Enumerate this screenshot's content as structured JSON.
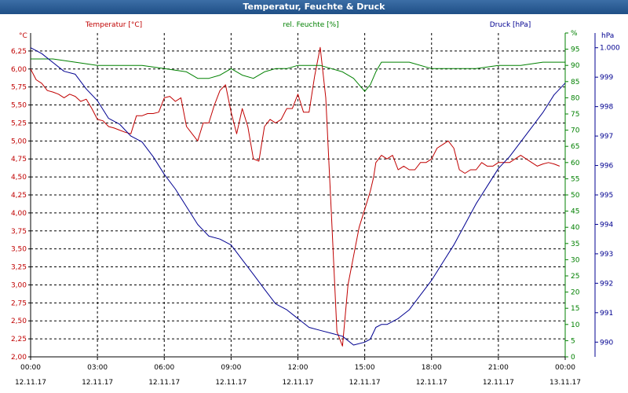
{
  "window": {
    "title": "Temperatur, Feuchte & Druck"
  },
  "chart_data": {
    "type": "line",
    "title": "Temperatur, Feuchte & Druck",
    "legend": {
      "placement": "top",
      "entries": [
        "Temperatur [°C]",
        "rel. Feuchte [%]",
        "Druck [hPa]"
      ]
    },
    "grid": true,
    "x_range": [
      "12.11.17 00:00",
      "13.11.17 00:00"
    ],
    "x_ticks": [
      {
        "time": "00:00",
        "date": "12.11.17"
      },
      {
        "time": "03:00",
        "date": "12.11.17"
      },
      {
        "time": "06:00",
        "date": "12.11.17"
      },
      {
        "time": "09:00",
        "date": "12.11.17"
      },
      {
        "time": "12:00",
        "date": "12.11.17"
      },
      {
        "time": "15:00",
        "date": "12.11.17"
      },
      {
        "time": "18:00",
        "date": "12.11.17"
      },
      {
        "time": "21:00",
        "date": "12.11.17"
      },
      {
        "time": "00:00",
        "date": "13.11.17"
      }
    ],
    "axes": {
      "temperature": {
        "unit": "°C",
        "label": "Temperatur [°C]",
        "ylim": [
          2.0,
          6.5
        ],
        "color": "#c00000",
        "ticks": [
          "2,00",
          "2,25",
          "2,50",
          "2,75",
          "3,00",
          "3,25",
          "3,50",
          "3,75",
          "4,00",
          "4,25",
          "4,50",
          "4,75",
          "5,00",
          "5,25",
          "5,50",
          "5,75",
          "6,00",
          "6,25"
        ]
      },
      "humidity": {
        "unit": "%",
        "label": "rel. Feuchte [%]",
        "ylim": [
          0,
          100
        ],
        "color": "#008000",
        "ticks": [
          "0",
          "5",
          "10",
          "15",
          "20",
          "25",
          "30",
          "35",
          "40",
          "45",
          "50",
          "55",
          "60",
          "65",
          "70",
          "75",
          "80",
          "85",
          "90",
          "95",
          "%"
        ]
      },
      "pressure": {
        "unit": "hPa",
        "label": "Druck [hPa]",
        "ylim": [
          989.5,
          1000.5
        ],
        "color": "#000090",
        "ticks": [
          "990",
          "991",
          "992",
          "993",
          "994",
          "995",
          "996",
          "997",
          "998",
          "999",
          "1.000"
        ]
      }
    },
    "series": [
      {
        "name": "Temperatur [°C]",
        "axis": "temperature",
        "color": "#c00000",
        "x": [
          0,
          0.25,
          0.5,
          0.75,
          1,
          1.25,
          1.5,
          1.75,
          2,
          2.25,
          2.5,
          2.75,
          3,
          3.25,
          3.5,
          3.75,
          4,
          4.25,
          4.5,
          4.75,
          5,
          5.25,
          5.5,
          5.75,
          6,
          6.25,
          6.5,
          6.75,
          7,
          7.25,
          7.5,
          7.75,
          8,
          8.25,
          8.5,
          8.75,
          9,
          9.25,
          9.5,
          9.75,
          10,
          10.25,
          10.5,
          10.75,
          11,
          11.25,
          11.5,
          11.75,
          12,
          12.25,
          12.5,
          12.75,
          13,
          13.25,
          13.5,
          13.75,
          14,
          14.25,
          14.5,
          14.75,
          15,
          15.1,
          15.25,
          15.4,
          15.5,
          15.75,
          16,
          16.25,
          16.5,
          16.75,
          17,
          17.25,
          17.5,
          17.75,
          18,
          18.25,
          18.5,
          18.75,
          19,
          19.25,
          19.5,
          19.75,
          20,
          20.25,
          20.5,
          20.75,
          21,
          21.25,
          21.5,
          21.75,
          22,
          22.25,
          22.5,
          22.75,
          23,
          23.25,
          23.5,
          23.75
        ],
        "y": [
          6.0,
          5.85,
          5.8,
          5.7,
          5.68,
          5.65,
          5.6,
          5.65,
          5.62,
          5.55,
          5.58,
          5.45,
          5.3,
          5.28,
          5.2,
          5.18,
          5.15,
          5.12,
          5.1,
          5.35,
          5.35,
          5.38,
          5.38,
          5.4,
          5.6,
          5.62,
          5.55,
          5.6,
          5.2,
          5.1,
          5.0,
          5.25,
          5.25,
          5.5,
          5.7,
          5.78,
          5.4,
          5.1,
          5.45,
          5.2,
          4.75,
          4.72,
          5.2,
          5.3,
          5.25,
          5.3,
          5.45,
          5.45,
          5.65,
          5.4,
          5.4,
          5.9,
          6.3,
          5.6,
          4.0,
          2.35,
          2.15,
          3.0,
          3.4,
          3.8,
          4.05,
          4.15,
          4.3,
          4.5,
          4.7,
          4.8,
          4.75,
          4.8,
          4.6,
          4.65,
          4.6,
          4.6,
          4.7,
          4.7,
          4.75,
          4.9,
          4.95,
          5.0,
          4.9,
          4.6,
          4.55,
          4.6,
          4.6,
          4.7,
          4.65,
          4.65,
          4.7,
          4.7,
          4.7,
          4.75,
          4.8,
          4.75,
          4.7,
          4.65,
          4.68,
          4.7,
          4.68,
          4.65
        ]
      },
      {
        "name": "rel. Feuchte [%]",
        "axis": "humidity",
        "color": "#008000",
        "x": [
          0,
          1,
          2,
          3,
          4,
          5,
          6,
          7,
          7.5,
          8,
          8.5,
          9,
          9.5,
          10,
          10.5,
          11,
          11.5,
          12,
          12.5,
          13,
          13.5,
          14,
          14.5,
          15,
          15.25,
          15.5,
          15.75,
          16,
          17,
          18,
          19,
          20,
          21,
          22,
          23,
          24
        ],
        "y": [
          92,
          92,
          91,
          90,
          90,
          90,
          89,
          88,
          86,
          86,
          87,
          89,
          87,
          86,
          88,
          89,
          89,
          90,
          90,
          90,
          89,
          88,
          86,
          82,
          84,
          88,
          91,
          91,
          91,
          89,
          89,
          89,
          90,
          90,
          91,
          91
        ]
      },
      {
        "name": "Druck [hPa]",
        "axis": "pressure",
        "color": "#000090",
        "x": [
          0,
          0.5,
          1,
          1.5,
          2,
          2.5,
          3,
          3.5,
          4,
          4.5,
          5,
          5.5,
          6,
          6.5,
          7,
          7.5,
          8,
          8.5,
          9,
          9.5,
          10,
          10.5,
          11,
          11.5,
          12,
          12.5,
          13,
          13.5,
          14,
          14.5,
          15,
          15.25,
          15.5,
          15.75,
          16,
          16.5,
          17,
          17.5,
          18,
          18.5,
          19,
          19.5,
          20,
          20.5,
          21,
          21.5,
          22,
          22.5,
          23,
          23.5,
          24
        ],
        "y": [
          1000,
          999.8,
          999.5,
          999.2,
          999.1,
          998.6,
          998.2,
          997.6,
          997.4,
          997.0,
          996.8,
          996.3,
          995.7,
          995.2,
          994.6,
          994.0,
          993.6,
          993.5,
          993.3,
          992.8,
          992.3,
          991.8,
          991.3,
          991.1,
          990.8,
          990.5,
          990.4,
          990.3,
          990.2,
          989.9,
          990.0,
          990.1,
          990.5,
          990.6,
          990.6,
          990.8,
          991.1,
          991.6,
          992.1,
          992.7,
          993.3,
          994.0,
          994.7,
          995.3,
          995.9,
          996.3,
          996.8,
          997.3,
          997.8,
          998.4,
          998.8
        ]
      }
    ]
  }
}
